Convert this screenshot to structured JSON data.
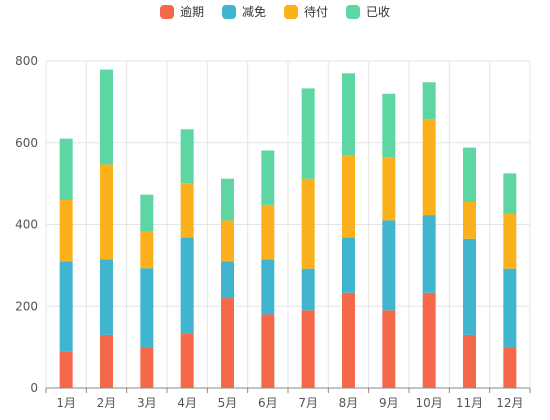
{
  "chart_data": {
    "type": "bar",
    "stacked": true,
    "categories": [
      "1月",
      "2月",
      "3月",
      "4月",
      "5月",
      "6月",
      "7月",
      "8月",
      "9月",
      "10月",
      "11月",
      "12月"
    ],
    "series": [
      {
        "name": "逾期",
        "color": "#f5694a",
        "values": [
          90,
          130,
          100,
          133,
          220,
          180,
          190,
          233,
          190,
          233,
          130,
          100
        ]
      },
      {
        "name": "减免",
        "color": "#3fb5cf",
        "values": [
          220,
          185,
          193,
          235,
          90,
          135,
          102,
          135,
          220,
          190,
          235,
          192
        ]
      },
      {
        "name": "待付",
        "color": "#fbb11c",
        "values": [
          150,
          232,
          90,
          133,
          100,
          133,
          220,
          202,
          155,
          235,
          90,
          135
        ]
      },
      {
        "name": "已收",
        "color": "#5dd6a4",
        "values": [
          150,
          232,
          90,
          132,
          102,
          133,
          221,
          200,
          155,
          90,
          133,
          98
        ]
      }
    ],
    "ylim": [
      0,
      800
    ],
    "yticks": [
      0,
      200,
      400,
      600,
      800
    ],
    "grid": true,
    "legend_position": "top"
  },
  "style": {
    "axis_color": "#888888",
    "grid_color": "#e5e5e5",
    "label_color": "#555555"
  }
}
